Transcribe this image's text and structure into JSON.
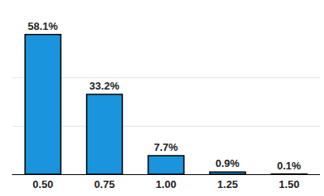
{
  "chart_data": {
    "type": "bar",
    "categories": [
      "0.50",
      "0.75",
      "1.00",
      "1.25",
      "1.50"
    ],
    "values": [
      58.1,
      33.2,
      7.7,
      0.9,
      0.1
    ],
    "value_labels": [
      "58.1%",
      "33.2%",
      "7.7%",
      "0.9%",
      "0.1%"
    ],
    "color": "#1a94dc",
    "ylim": [
      0,
      60
    ],
    "yticks": [
      0,
      20,
      40,
      60
    ],
    "grid": true,
    "data_labels": true,
    "tick_labels": "x"
  }
}
